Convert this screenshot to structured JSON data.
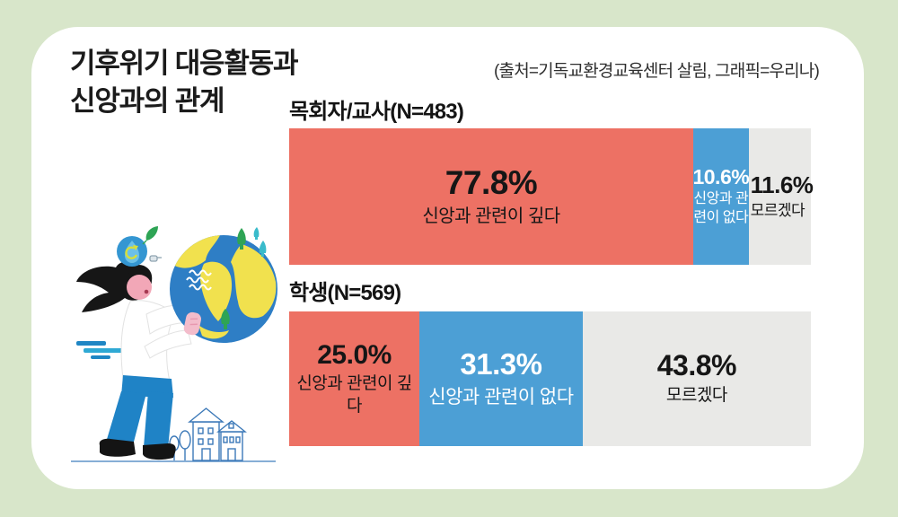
{
  "colors": {
    "background": "#D8E6CA",
    "card": "#FFFFFF",
    "segment_deep": "#ED7164",
    "segment_none": "#4C9FD5",
    "segment_unknown": "#E9E9E7",
    "text": "#1B1B1B"
  },
  "header": {
    "title_line1": "기후위기 대응활동과",
    "title_line2": "신앙과의 관계",
    "source": "(출처=기독교환경교육센터 살림, 그래픽=우리나)"
  },
  "chart_data": {
    "type": "bar",
    "variant": "horizontal-stacked",
    "unit": "percent",
    "title": "기후위기 대응활동과 신앙과의 관계",
    "source_credit": "기독교환경교육센터 살림",
    "graphic_credit": "우리나",
    "categories": [
      "신앙과 관련이 깊다",
      "신앙과 관련이 없다",
      "모르겠다"
    ],
    "series_colors": [
      "#ED7164",
      "#4C9FD5",
      "#E9E9E7"
    ],
    "xlim": [
      0,
      100
    ],
    "grid": false,
    "legend_position": "in-bar-labels",
    "groups": [
      {
        "label": "목회자/교사(N=483)",
        "n": 483,
        "segments": [
          {
            "category": "신앙과 관련이 깊다",
            "value": 77.8,
            "value_label": "77.8%"
          },
          {
            "category": "신앙과 관련이 없다",
            "value": 10.6,
            "value_label": "10.6%"
          },
          {
            "category": "모르겠다",
            "value": 11.6,
            "value_label": "11.6%"
          }
        ]
      },
      {
        "label": "학생(N=569)",
        "n": 569,
        "segments": [
          {
            "category": "신앙과 관련이 깊다",
            "value": 25.0,
            "value_label": "25.0%"
          },
          {
            "category": "신앙과 관련이 없다",
            "value": 31.3,
            "value_label": "31.3%"
          },
          {
            "category": "모르겠다",
            "value": 43.8,
            "value_label": "43.8%"
          }
        ]
      }
    ]
  },
  "illustration": {
    "description": "Woman with ponytail holding a blue-and-yellow earth globe; eco water-drop recycle badge with leaf; teal motion dashes; outline houses and trees on a ground line",
    "icons": [
      "eco-recycle-drop-icon",
      "leaf-icon",
      "earth-globe",
      "tree-icon",
      "house-icon",
      "motion-lines"
    ]
  }
}
